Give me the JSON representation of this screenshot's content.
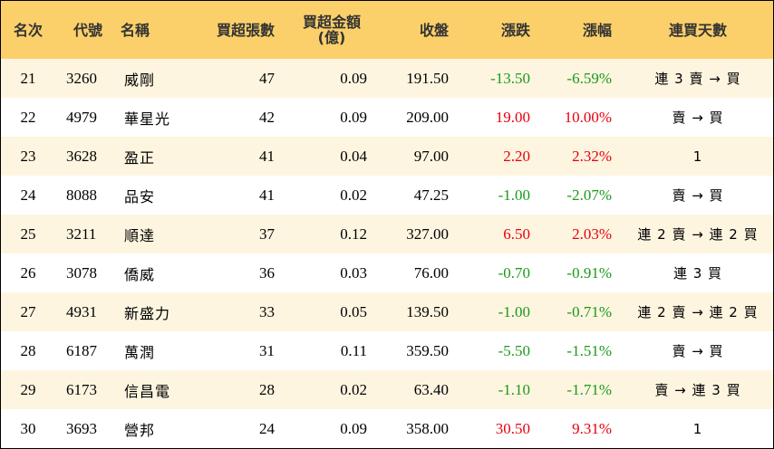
{
  "columns": {
    "rank": "名次",
    "code": "代號",
    "name": "名稱",
    "net_buy_lots": "買超張數",
    "net_buy_amount_l1": "買超金額",
    "net_buy_amount_l2": "(億)",
    "close": "收盤",
    "change": "漲跌",
    "change_pct": "漲幅",
    "consecutive_days": "連買天數"
  },
  "colors": {
    "header_bg": "#fbd06a",
    "stripe_bg": "#fdf5e0",
    "up": "#e8000d",
    "down": "#1a9a1a"
  },
  "rows": [
    {
      "rank": "21",
      "code": "3260",
      "name": "威剛",
      "lots": "47",
      "amount": "0.09",
      "close": "191.50",
      "change": "-13.50",
      "pct": "-6.59%",
      "dir": "down",
      "days": "連 3 賣 → 買"
    },
    {
      "rank": "22",
      "code": "4979",
      "name": "華星光",
      "lots": "42",
      "amount": "0.09",
      "close": "209.00",
      "change": "19.00",
      "pct": "10.00%",
      "dir": "up",
      "days": "賣 → 買"
    },
    {
      "rank": "23",
      "code": "3628",
      "name": "盈正",
      "lots": "41",
      "amount": "0.04",
      "close": "97.00",
      "change": "2.20",
      "pct": "2.32%",
      "dir": "up",
      "days": "1"
    },
    {
      "rank": "24",
      "code": "8088",
      "name": "品安",
      "lots": "41",
      "amount": "0.02",
      "close": "47.25",
      "change": "-1.00",
      "pct": "-2.07%",
      "dir": "down",
      "days": "賣 → 買"
    },
    {
      "rank": "25",
      "code": "3211",
      "name": "順達",
      "lots": "37",
      "amount": "0.12",
      "close": "327.00",
      "change": "6.50",
      "pct": "2.03%",
      "dir": "up",
      "days": "連 2 賣 → 連 2 買"
    },
    {
      "rank": "26",
      "code": "3078",
      "name": "僑威",
      "lots": "36",
      "amount": "0.03",
      "close": "76.00",
      "change": "-0.70",
      "pct": "-0.91%",
      "dir": "down",
      "days": "連 3 買"
    },
    {
      "rank": "27",
      "code": "4931",
      "name": "新盛力",
      "lots": "33",
      "amount": "0.05",
      "close": "139.50",
      "change": "-1.00",
      "pct": "-0.71%",
      "dir": "down",
      "days": "連 2 賣 → 連 2 買"
    },
    {
      "rank": "28",
      "code": "6187",
      "name": "萬潤",
      "lots": "31",
      "amount": "0.11",
      "close": "359.50",
      "change": "-5.50",
      "pct": "-1.51%",
      "dir": "down",
      "days": "賣 → 買"
    },
    {
      "rank": "29",
      "code": "6173",
      "name": "信昌電",
      "lots": "28",
      "amount": "0.02",
      "close": "63.40",
      "change": "-1.10",
      "pct": "-1.71%",
      "dir": "down",
      "days": "賣 → 連 3 買"
    },
    {
      "rank": "30",
      "code": "3693",
      "name": "營邦",
      "lots": "24",
      "amount": "0.09",
      "close": "358.00",
      "change": "30.50",
      "pct": "9.31%",
      "dir": "up",
      "days": "1"
    }
  ]
}
